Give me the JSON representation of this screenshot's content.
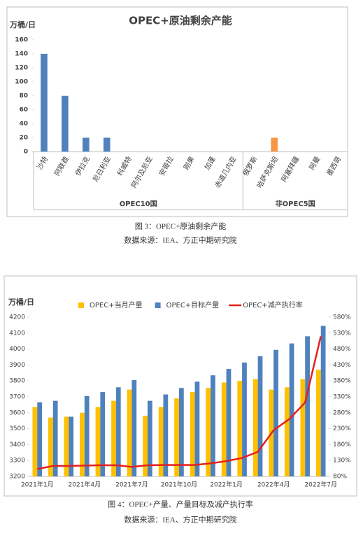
{
  "chart_data": [
    {
      "type": "bar",
      "title": "OPEC+原油剩余产能",
      "y_label": "万桶/日",
      "ylim": [
        0,
        160
      ],
      "yticks": [
        0,
        20,
        40,
        60,
        80,
        100,
        120,
        140,
        160
      ],
      "grid": false,
      "groups": [
        {
          "label": "OPEC10国",
          "categories": [
            "沙特",
            "阿联酋",
            "伊拉克",
            "尼日利亚",
            "科威特",
            "阿尔及尼亚",
            "安哥拉",
            "刚果",
            "加蓬",
            "赤道几内亚"
          ],
          "values": [
            140,
            80,
            20,
            20,
            0,
            0,
            0,
            0,
            0,
            0
          ],
          "colors": [
            "#4f81bd",
            "#4f81bd",
            "#4f81bd",
            "#4f81bd",
            "#4f81bd",
            "#4f81bd",
            "#4f81bd",
            "#4f81bd",
            "#4f81bd",
            "#4f81bd"
          ]
        },
        {
          "label": "非OPEC5国",
          "categories": [
            "俄罗斯",
            "哈萨克斯坦",
            "阿塞拜疆",
            "阿曼",
            "墨西哥"
          ],
          "values": [
            0,
            20,
            0,
            0,
            0
          ],
          "colors": [
            "#4f81bd",
            "#f79646",
            "#4f81bd",
            "#4f81bd",
            "#4f81bd"
          ]
        }
      ]
    },
    {
      "type": "combo",
      "y_label": "万桶/日",
      "legend": "top",
      "grid": false,
      "categories": [
        "2021年1月",
        null,
        null,
        "2021年4月",
        null,
        null,
        "2021年7月",
        null,
        null,
        "2021年10月",
        null,
        null,
        "2022年1月",
        null,
        null,
        "2022年4月",
        null,
        null,
        "2022年7月"
      ],
      "series": [
        {
          "name": "OPEC+当月产量",
          "kind": "bar",
          "color": "#ffc000",
          "values": [
            3635,
            3570,
            3575,
            3600,
            3635,
            3675,
            3745,
            3580,
            3635,
            3690,
            3730,
            3755,
            3790,
            3800,
            3810,
            3745,
            3760,
            3810,
            3870
          ]
        },
        {
          "name": "OPEC+目标产量",
          "kind": "bar",
          "color": "#4f81bd",
          "values": [
            3665,
            3675,
            3575,
            3705,
            3730,
            3760,
            3805,
            3675,
            3715,
            3755,
            3795,
            3835,
            3875,
            3915,
            3955,
            3995,
            4035,
            4080,
            4145
          ]
        },
        {
          "name": "OPEC+减产执行率",
          "kind": "line",
          "axis": "y2",
          "color": "#e3211c",
          "values": [
            103,
            113,
            113,
            114,
            115,
            115,
            110,
            115,
            116,
            116,
            116,
            121,
            128,
            138,
            157,
            225,
            260,
            312,
            520
          ]
        }
      ],
      "ylim": [
        3200,
        4200
      ],
      "yticks": [
        3200,
        3300,
        3400,
        3500,
        3600,
        3700,
        3800,
        3900,
        4000,
        4100,
        4200
      ],
      "y2lim": [
        80,
        580
      ],
      "y2ticks": [
        {
          "value": 80,
          "label": "80%"
        },
        {
          "value": 130,
          "label": "130%"
        },
        {
          "value": 180,
          "label": "180%"
        },
        {
          "value": 230,
          "label": "230%"
        },
        {
          "value": 280,
          "label": "280%"
        },
        {
          "value": 330,
          "label": "330%"
        },
        {
          "value": 380,
          "label": "380%"
        },
        {
          "value": 430,
          "label": "430%"
        },
        {
          "value": 480,
          "label": "480%"
        },
        {
          "value": 530,
          "label": "530%"
        },
        {
          "value": 580,
          "label": "580%"
        }
      ]
    }
  ],
  "captions": [
    {
      "figure": "图 3：OPEC+原油剩余产能",
      "source": "数据来源：IEA、方正中期研究院"
    },
    {
      "figure": "图 4：OPEC+产量、产量目标及减产执行率",
      "source": "数据来源：IEA、方正中期研究院"
    }
  ]
}
